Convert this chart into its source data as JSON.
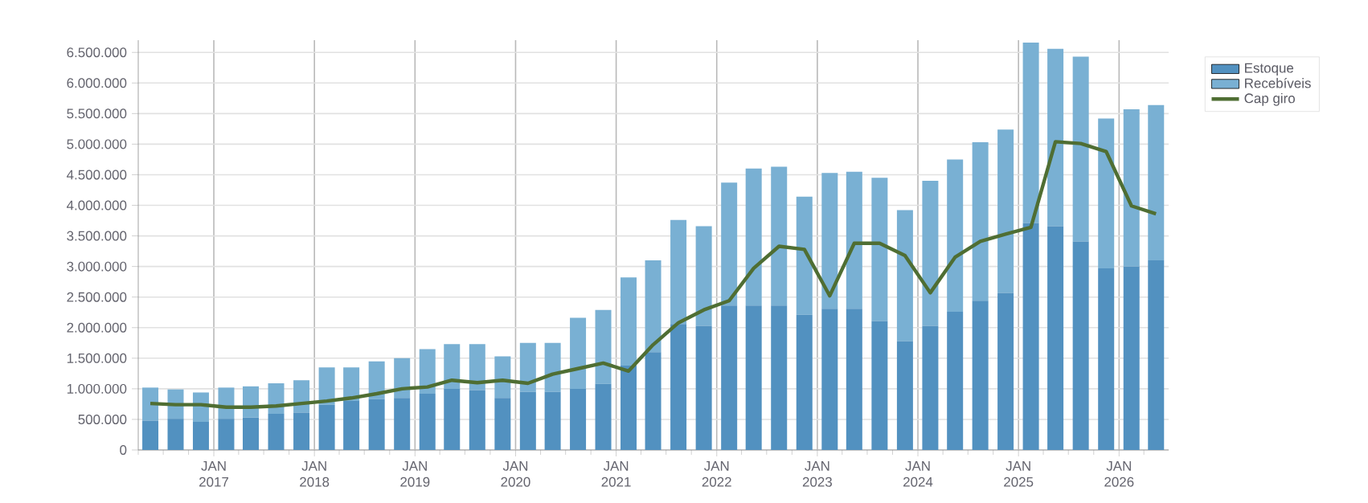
{
  "chart_data": {
    "type": "bar",
    "stacked": true,
    "x": [
      "2016-05-15",
      "2016-08-15",
      "2016-11-15",
      "2017-02-15",
      "2017-05-15",
      "2017-08-15",
      "2017-11-15",
      "2018-02-15",
      "2018-05-15",
      "2018-08-15",
      "2018-11-15",
      "2019-02-15",
      "2019-05-15",
      "2019-08-15",
      "2019-11-15",
      "2020-02-15",
      "2020-05-15",
      "2020-08-15",
      "2020-11-15",
      "2021-02-15",
      "2021-05-15",
      "2021-08-15",
      "2021-11-15",
      "2022-02-15",
      "2022-05-15",
      "2022-08-15",
      "2022-11-15",
      "2023-02-15",
      "2023-05-15",
      "2023-08-15",
      "2023-11-15",
      "2024-02-15",
      "2024-05-15",
      "2024-08-15",
      "2024-11-15",
      "2025-02-15",
      "2025-05-15",
      "2025-08-15",
      "2025-11-15",
      "2026-02-15",
      "2026-05-15"
    ],
    "series": [
      {
        "name": "Estoque",
        "color": "#5291c0",
        "values": [
          480000,
          510000,
          460000,
          510000,
          530000,
          590000,
          610000,
          740000,
          800000,
          830000,
          850000,
          920000,
          1000000,
          980000,
          850000,
          950000,
          950000,
          1000000,
          1080000,
          1380000,
          1600000,
          2060000,
          2030000,
          2360000,
          2360000,
          2360000,
          2210000,
          2310000,
          2310000,
          2110000,
          1780000,
          2030000,
          2260000,
          2440000,
          2570000,
          3710000,
          3660000,
          3410000,
          2970000,
          3000000,
          3100000
        ]
      },
      {
        "name": "Recebíveis",
        "color": "#79b0d3",
        "values": [
          540000,
          480000,
          480000,
          510000,
          510000,
          500000,
          530000,
          610000,
          550000,
          620000,
          650000,
          730000,
          730000,
          750000,
          680000,
          800000,
          800000,
          1160000,
          1210000,
          1440000,
          1500000,
          1700000,
          1630000,
          2010000,
          2240000,
          2270000,
          1930000,
          2220000,
          2240000,
          2340000,
          2140000,
          2370000,
          2490000,
          2590000,
          2670000,
          2950000,
          2900000,
          3020000,
          2450000,
          2570000,
          2540000
        ]
      },
      {
        "name": "Cap giro",
        "type": "line",
        "color": "#4f6e33",
        "values": [
          760000,
          740000,
          740000,
          700000,
          700000,
          720000,
          760000,
          800000,
          850000,
          920000,
          1000000,
          1030000,
          1140000,
          1100000,
          1140000,
          1090000,
          1240000,
          1330000,
          1420000,
          1290000,
          1720000,
          2080000,
          2290000,
          2440000,
          2970000,
          3330000,
          3280000,
          2520000,
          3380000,
          3380000,
          3180000,
          2570000,
          3150000,
          3410000,
          3530000,
          3640000,
          5040000,
          5010000,
          4880000,
          3990000,
          3860000
        ]
      }
    ],
    "xlim": [
      "2016-04-01",
      "2026-06-30"
    ],
    "xticks": [
      {
        "value": "2016-04-01",
        "label": null
      },
      {
        "value": "2016-07-01",
        "label": null
      },
      {
        "value": "2016-10-01",
        "label": null
      },
      {
        "value": "2017-01-01",
        "label": "JAN 2017"
      },
      {
        "value": "2017-04-01",
        "label": null
      },
      {
        "value": "2017-07-01",
        "label": null
      },
      {
        "value": "2017-10-01",
        "label": null
      },
      {
        "value": "2018-01-01",
        "label": "JAN 2018"
      },
      {
        "value": "2018-04-01",
        "label": null
      },
      {
        "value": "2018-07-01",
        "label": null
      },
      {
        "value": "2018-10-01",
        "label": null
      },
      {
        "value": "2019-01-01",
        "label": "JAN 2019"
      },
      {
        "value": "2019-04-01",
        "label": null
      },
      {
        "value": "2019-07-01",
        "label": null
      },
      {
        "value": "2019-10-01",
        "label": null
      },
      {
        "value": "2020-01-01",
        "label": "JAN 2020"
      },
      {
        "value": "2020-04-01",
        "label": null
      },
      {
        "value": "2020-07-01",
        "label": null
      },
      {
        "value": "2020-10-01",
        "label": null
      },
      {
        "value": "2021-01-01",
        "label": "JAN 2021"
      },
      {
        "value": "2021-04-01",
        "label": null
      },
      {
        "value": "2021-07-01",
        "label": null
      },
      {
        "value": "2021-10-01",
        "label": null
      },
      {
        "value": "2022-01-01",
        "label": "JAN 2022"
      },
      {
        "value": "2022-04-01",
        "label": null
      },
      {
        "value": "2022-07-01",
        "label": null
      },
      {
        "value": "2022-10-01",
        "label": null
      },
      {
        "value": "2023-01-01",
        "label": "JAN 2023"
      },
      {
        "value": "2023-04-01",
        "label": null
      },
      {
        "value": "2023-07-01",
        "label": null
      },
      {
        "value": "2023-10-01",
        "label": null
      },
      {
        "value": "2024-01-01",
        "label": "JAN 2024"
      },
      {
        "value": "2024-04-01",
        "label": null
      },
      {
        "value": "2024-07-01",
        "label": null
      },
      {
        "value": "2024-10-01",
        "label": null
      },
      {
        "value": "2025-01-01",
        "label": "JAN 2025"
      },
      {
        "value": "2025-04-01",
        "label": null
      },
      {
        "value": "2025-07-01",
        "label": null
      },
      {
        "value": "2025-10-01",
        "label": null
      },
      {
        "value": "2026-01-01",
        "label": "JAN 2026"
      },
      {
        "value": "2026-04-01",
        "label": null
      }
    ],
    "ylim": [
      0,
      6700000
    ],
    "yticks": [
      0,
      {
        "value": 500000,
        "label": "500.000"
      },
      {
        "value": 1000000,
        "label": "1.000.000"
      },
      {
        "value": 1500000,
        "label": "1.500.000"
      },
      {
        "value": 2000000,
        "label": "2.000.000"
      },
      {
        "value": 2500000,
        "label": "2.500.000"
      },
      {
        "value": 3000000,
        "label": "3.000.000"
      },
      {
        "value": 3500000,
        "label": "3.500.000"
      },
      {
        "value": 4000000,
        "label": "4.000.000"
      },
      {
        "value": 4500000,
        "label": "4.500.000"
      },
      {
        "value": 5000000,
        "label": "5.000.000"
      },
      {
        "value": 5500000,
        "label": "5.500.000"
      },
      {
        "value": 6000000,
        "label": "6.000.000"
      },
      {
        "value": 6500000,
        "label": "6.500.000"
      }
    ],
    "grid": true,
    "legend": "top right",
    "marker": "none",
    "line_style": "solid"
  }
}
